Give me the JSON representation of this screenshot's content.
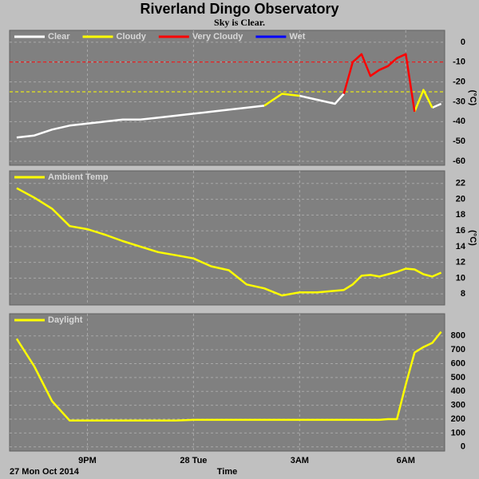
{
  "title": "Riverland Dingo Observatory",
  "subtitle": "Sky is Clear.",
  "chart_data": [
    {
      "type": "line",
      "y_label": "(°C)",
      "x": [
        19,
        19.5,
        20,
        20.5,
        21,
        21.5,
        22,
        22.5,
        23,
        23.5,
        24,
        24.5,
        25,
        25.5,
        26,
        26.5,
        27,
        27.5,
        28,
        28.25,
        28.5,
        28.75,
        29,
        29.25,
        29.5,
        29.75,
        30,
        30.25,
        30.5,
        30.75,
        31
      ],
      "xlim": [
        18.8,
        31.1
      ],
      "ylim": [
        -62,
        6
      ],
      "yticks": [
        0,
        -10,
        -20,
        -30,
        -40,
        -50,
        -60
      ],
      "grid": true,
      "thresholds": [
        {
          "value": -10,
          "color": "#ff0000"
        },
        {
          "value": -25,
          "color": "#ffff00"
        }
      ],
      "series": [
        {
          "name": "Clear",
          "color": "#ffffff",
          "values": [
            -48,
            -47,
            -44,
            -42,
            -41,
            -40,
            -39,
            -39,
            -38,
            -37,
            -36,
            -35,
            -34,
            -33,
            -32,
            null,
            -27,
            -29,
            -31,
            -26,
            null,
            null,
            null,
            null,
            null,
            null,
            null,
            null,
            null,
            -33,
            -31
          ]
        },
        {
          "name": "Cloudy",
          "color": "#ffff00",
          "values": [
            null,
            null,
            null,
            null,
            null,
            null,
            null,
            null,
            null,
            null,
            null,
            null,
            null,
            null,
            -32,
            -26,
            -27,
            null,
            null,
            null,
            null,
            null,
            null,
            null,
            null,
            null,
            null,
            -35,
            -24,
            -33,
            null
          ]
        },
        {
          "name": "Very Cloudy",
          "color": "#ff0000",
          "values": [
            null,
            null,
            null,
            null,
            null,
            null,
            null,
            null,
            null,
            null,
            null,
            null,
            null,
            null,
            null,
            null,
            null,
            null,
            null,
            -26,
            -10,
            -6,
            -17,
            -14,
            -12,
            -8,
            -6,
            -35,
            null,
            null,
            null
          ]
        },
        {
          "name": "Wet",
          "color": "#0000ff",
          "values": [
            null,
            null,
            null,
            null,
            null,
            null,
            null,
            null,
            null,
            null,
            null,
            null,
            null,
            null,
            null,
            null,
            null,
            null,
            null,
            null,
            null,
            null,
            null,
            null,
            null,
            null,
            null,
            null,
            null,
            null,
            null
          ]
        }
      ]
    },
    {
      "type": "line",
      "y_label": "(°C)",
      "x": [
        19,
        19.5,
        20,
        20.5,
        21,
        21.5,
        22,
        22.5,
        23,
        23.5,
        24,
        24.5,
        25,
        25.5,
        26,
        26.5,
        27,
        27.5,
        28,
        28.25,
        28.5,
        28.75,
        29,
        29.25,
        29.5,
        29.75,
        30,
        30.25,
        30.5,
        30.75,
        31
      ],
      "xlim": [
        18.8,
        31.1
      ],
      "ylim": [
        6.6,
        23.6
      ],
      "yticks": [
        22,
        20,
        18,
        16,
        14,
        12,
        10,
        8
      ],
      "grid": true,
      "series": [
        {
          "name": "Ambient Temp",
          "color": "#ffff00",
          "values": [
            21.4,
            20.2,
            18.8,
            16.6,
            16.2,
            15.5,
            14.7,
            14.0,
            13.3,
            12.9,
            12.5,
            11.5,
            11.0,
            9.2,
            8.7,
            7.8,
            8.2,
            8.2,
            8.4,
            8.5,
            9.2,
            10.3,
            10.4,
            10.2,
            10.5,
            10.8,
            11.2,
            11.1,
            10.5,
            10.2,
            10.7
          ]
        }
      ]
    },
    {
      "type": "line",
      "x": [
        19,
        19.5,
        20,
        20.5,
        21,
        21.5,
        22,
        22.5,
        23,
        23.5,
        24,
        24.5,
        25,
        25.5,
        26,
        26.5,
        27,
        27.5,
        28,
        28.25,
        28.5,
        28.75,
        29,
        29.25,
        29.5,
        29.75,
        30,
        30.25,
        30.5,
        30.75,
        31
      ],
      "xlim": [
        18.8,
        31.1
      ],
      "xticks": [
        {
          "value": 21,
          "label": "9PM"
        },
        {
          "value": 24,
          "label": "28 Tue"
        },
        {
          "value": 27,
          "label": "3AM"
        },
        {
          "value": 30,
          "label": "6AM"
        }
      ],
      "x_label": "Time",
      "date_label": "27 Mon Oct 2014",
      "ylim": [
        -30,
        960
      ],
      "yticks": [
        800,
        700,
        600,
        500,
        400,
        300,
        200,
        100,
        0
      ],
      "grid": true,
      "series": [
        {
          "name": "Daylight",
          "color": "#ffff00",
          "values": [
            780,
            580,
            330,
            190,
            190,
            190,
            190,
            190,
            190,
            190,
            195,
            195,
            195,
            195,
            195,
            195,
            195,
            195,
            195,
            195,
            195,
            195,
            195,
            195,
            200,
            200,
            450,
            680,
            720,
            750,
            830
          ]
        }
      ]
    }
  ]
}
